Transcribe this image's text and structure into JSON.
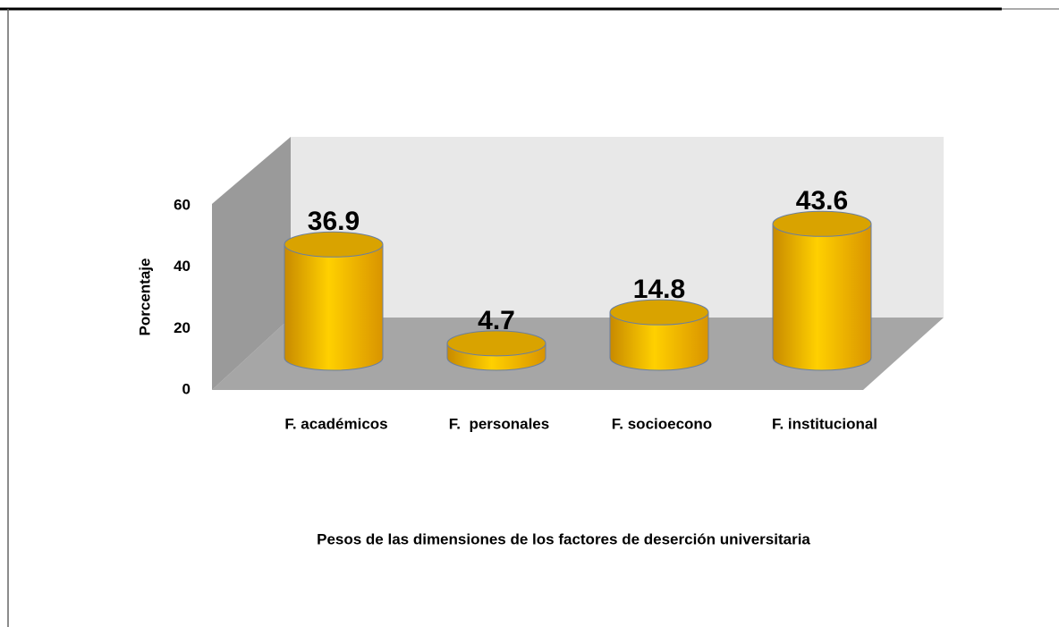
{
  "chart_data": {
    "type": "bar",
    "title": "Pesos de las dimensiones de los factores de deserción universitaria",
    "y_label": "Porcentaje",
    "categories": [
      "F. académicos",
      "F.  personales",
      "F. socioecono",
      "F. institucional"
    ],
    "values": [
      36.9,
      4.7,
      14.8,
      43.6
    ],
    "color": "#ffc000",
    "ylim": [
      0,
      60
    ],
    "yticks": [
      0,
      20,
      40,
      60
    ],
    "grid": false
  }
}
